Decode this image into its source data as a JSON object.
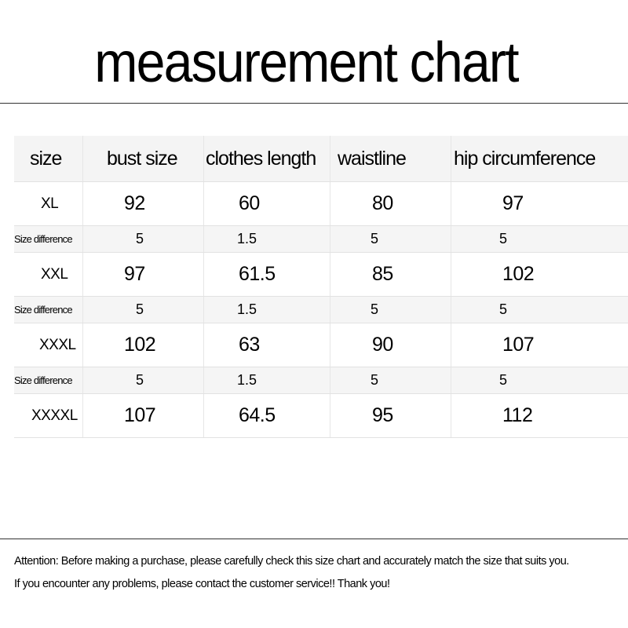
{
  "title": "measurement chart",
  "table": {
    "headers": [
      "size",
      "bust size",
      "clothes length",
      "waistline",
      "hip circumference"
    ],
    "rows": [
      {
        "type": "main",
        "cells": [
          "XL",
          "92",
          "60",
          "80",
          "97"
        ]
      },
      {
        "type": "diff",
        "cells": [
          "Size difference",
          "5",
          "1.5",
          "5",
          "5"
        ]
      },
      {
        "type": "main",
        "cells": [
          "XXL",
          "97",
          "61.5",
          "85",
          "102"
        ]
      },
      {
        "type": "diff",
        "cells": [
          "Size difference",
          "5",
          "1.5",
          "5",
          "5"
        ]
      },
      {
        "type": "main",
        "cells": [
          "XXXL",
          "102",
          "63",
          "90",
          "107"
        ]
      },
      {
        "type": "diff",
        "cells": [
          "Size difference",
          "5",
          "1.5",
          "5",
          "5"
        ]
      },
      {
        "type": "main",
        "cells": [
          "XXXXL",
          "107",
          "64.5",
          "95",
          "112"
        ]
      }
    ]
  },
  "notes": [
    "Attention: Before making a purchase, please carefully check this size chart and accurately match the size that suits you.",
    "If you encounter any problems, please contact the customer service!! Thank you!"
  ]
}
